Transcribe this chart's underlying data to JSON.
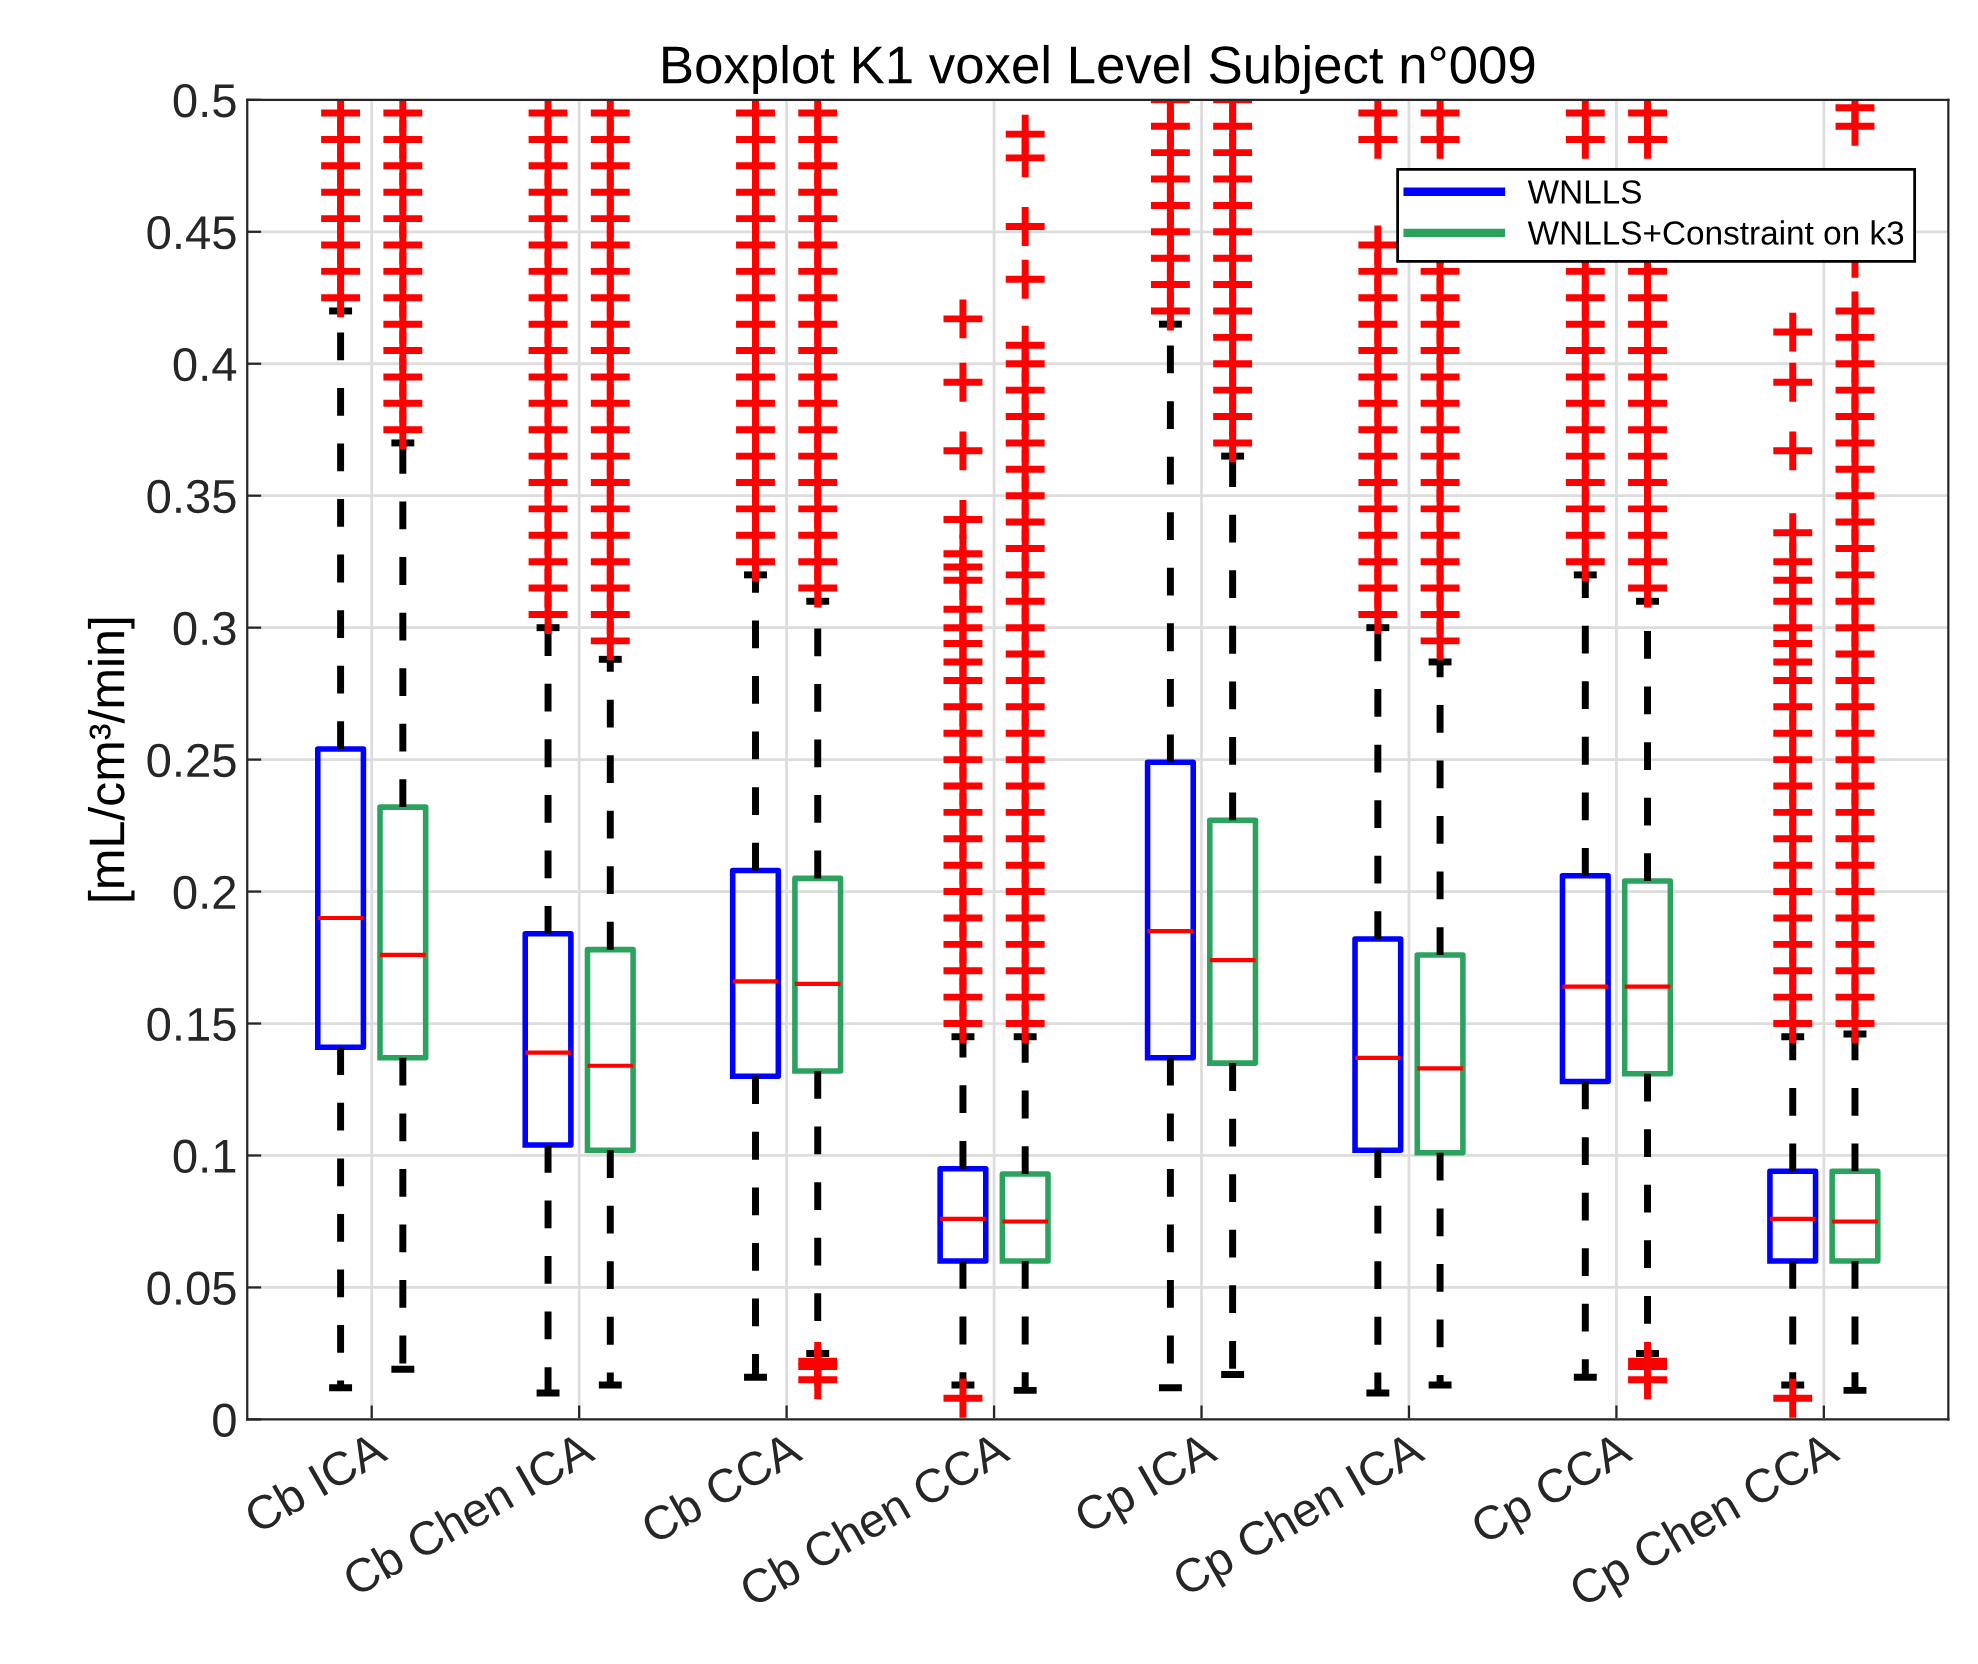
{
  "chart_data": {
    "type": "box",
    "title": "Boxplot K1 voxel Level Subject n°009",
    "ylabel": "[mL/cm³/min]",
    "categories": [
      "Cb ICA",
      "Cb Chen ICA",
      "Cb CCA",
      "Cb Chen CCA",
      "Cp ICA",
      "Cp Chen ICA",
      "Cp CCA",
      "Cp Chen CCA"
    ],
    "ylim": [
      0,
      0.5
    ],
    "yticks": [
      0,
      0.05,
      0.1,
      0.15,
      0.2,
      0.25,
      0.3,
      0.35,
      0.4,
      0.45,
      0.5
    ],
    "grid": true,
    "legend": "top right",
    "marker": "cross",
    "series": [
      {
        "name": "WNLLS",
        "color": "#0000ff",
        "boxes": [
          {
            "low": 0.012,
            "q1": 0.141,
            "median": 0.19,
            "q3": 0.254,
            "high": 0.42,
            "outliers": [
              0.425,
              0.435,
              0.445,
              0.455,
              0.465,
              0.475,
              0.485,
              0.495
            ]
          },
          {
            "low": 0.01,
            "q1": 0.104,
            "median": 0.139,
            "q3": 0.184,
            "high": 0.3,
            "outliers": [
              0.305,
              0.315,
              0.325,
              0.335,
              0.345,
              0.355,
              0.365,
              0.375,
              0.385,
              0.395,
              0.405,
              0.415,
              0.425,
              0.435,
              0.445,
              0.455,
              0.465,
              0.475,
              0.485,
              0.495
            ]
          },
          {
            "low": 0.016,
            "q1": 0.13,
            "median": 0.166,
            "q3": 0.208,
            "high": 0.32,
            "outliers": [
              0.325,
              0.335,
              0.345,
              0.355,
              0.365,
              0.375,
              0.385,
              0.395,
              0.405,
              0.415,
              0.425,
              0.435,
              0.445,
              0.455,
              0.465,
              0.475,
              0.485,
              0.495
            ]
          },
          {
            "low": 0.013,
            "q1": 0.06,
            "median": 0.076,
            "q3": 0.095,
            "high": 0.145,
            "outliers": [
              0.008,
              0.15,
              0.16,
              0.17,
              0.18,
              0.19,
              0.2,
              0.21,
              0.22,
              0.23,
              0.24,
              0.25,
              0.26,
              0.27,
              0.28,
              0.287,
              0.294,
              0.3,
              0.307,
              0.318,
              0.323,
              0.328,
              0.341,
              0.367,
              0.393,
              0.417
            ]
          },
          {
            "low": 0.012,
            "q1": 0.137,
            "median": 0.185,
            "q3": 0.249,
            "high": 0.415,
            "outliers": [
              0.42,
              0.43,
              0.44,
              0.45,
              0.46,
              0.47,
              0.48,
              0.49,
              0.5
            ]
          },
          {
            "low": 0.01,
            "q1": 0.102,
            "median": 0.137,
            "q3": 0.182,
            "high": 0.3,
            "outliers": [
              0.305,
              0.315,
              0.325,
              0.335,
              0.345,
              0.355,
              0.365,
              0.375,
              0.385,
              0.395,
              0.405,
              0.415,
              0.425,
              0.435,
              0.445,
              0.485,
              0.495
            ]
          },
          {
            "low": 0.016,
            "q1": 0.128,
            "median": 0.164,
            "q3": 0.206,
            "high": 0.32,
            "outliers": [
              0.325,
              0.335,
              0.345,
              0.355,
              0.365,
              0.375,
              0.385,
              0.395,
              0.405,
              0.415,
              0.425,
              0.435,
              0.445,
              0.485,
              0.495
            ]
          },
          {
            "low": 0.013,
            "q1": 0.06,
            "median": 0.076,
            "q3": 0.094,
            "high": 0.145,
            "outliers": [
              0.008,
              0.15,
              0.16,
              0.17,
              0.18,
              0.19,
              0.2,
              0.21,
              0.22,
              0.23,
              0.24,
              0.25,
              0.26,
              0.27,
              0.28,
              0.287,
              0.294,
              0.3,
              0.31,
              0.318,
              0.325,
              0.336,
              0.367,
              0.393,
              0.412
            ]
          }
        ]
      },
      {
        "name": "WNLLS+Constraint on k3",
        "color": "#2ca25f",
        "boxes": [
          {
            "low": 0.019,
            "q1": 0.137,
            "median": 0.176,
            "q3": 0.232,
            "high": 0.37,
            "outliers": [
              0.375,
              0.385,
              0.395,
              0.405,
              0.415,
              0.425,
              0.435,
              0.445,
              0.455,
              0.465,
              0.475,
              0.485,
              0.495
            ]
          },
          {
            "low": 0.013,
            "q1": 0.102,
            "median": 0.134,
            "q3": 0.178,
            "high": 0.288,
            "outliers": [
              0.295,
              0.305,
              0.315,
              0.325,
              0.335,
              0.345,
              0.355,
              0.365,
              0.375,
              0.385,
              0.395,
              0.405,
              0.415,
              0.425,
              0.435,
              0.445,
              0.455,
              0.465,
              0.475,
              0.485,
              0.495
            ]
          },
          {
            "low": 0.025,
            "q1": 0.132,
            "median": 0.165,
            "q3": 0.205,
            "high": 0.31,
            "outliers": [
              0.015,
              0.02,
              0.022,
              0.315,
              0.325,
              0.335,
              0.345,
              0.355,
              0.365,
              0.375,
              0.385,
              0.395,
              0.405,
              0.415,
              0.425,
              0.435,
              0.445,
              0.455,
              0.465,
              0.475,
              0.485,
              0.495
            ]
          },
          {
            "low": 0.011,
            "q1": 0.06,
            "median": 0.075,
            "q3": 0.093,
            "high": 0.145,
            "outliers": [
              0.15,
              0.16,
              0.17,
              0.18,
              0.19,
              0.2,
              0.21,
              0.22,
              0.23,
              0.24,
              0.25,
              0.26,
              0.27,
              0.28,
              0.29,
              0.3,
              0.31,
              0.32,
              0.33,
              0.34,
              0.35,
              0.36,
              0.37,
              0.38,
              0.39,
              0.4,
              0.407,
              0.432,
              0.452,
              0.478,
              0.487
            ]
          },
          {
            "low": 0.017,
            "q1": 0.135,
            "median": 0.174,
            "q3": 0.227,
            "high": 0.365,
            "outliers": [
              0.37,
              0.38,
              0.39,
              0.4,
              0.41,
              0.42,
              0.43,
              0.44,
              0.45,
              0.46,
              0.47,
              0.48,
              0.49,
              0.5
            ]
          },
          {
            "low": 0.013,
            "q1": 0.101,
            "median": 0.133,
            "q3": 0.176,
            "high": 0.287,
            "outliers": [
              0.295,
              0.305,
              0.315,
              0.325,
              0.335,
              0.345,
              0.355,
              0.365,
              0.375,
              0.385,
              0.395,
              0.405,
              0.415,
              0.425,
              0.435,
              0.445,
              0.485,
              0.495
            ]
          },
          {
            "low": 0.025,
            "q1": 0.131,
            "median": 0.164,
            "q3": 0.204,
            "high": 0.31,
            "outliers": [
              0.015,
              0.02,
              0.022,
              0.315,
              0.325,
              0.335,
              0.345,
              0.355,
              0.365,
              0.375,
              0.385,
              0.395,
              0.405,
              0.415,
              0.425,
              0.435,
              0.445,
              0.485,
              0.495
            ]
          },
          {
            "low": 0.011,
            "q1": 0.06,
            "median": 0.075,
            "q3": 0.094,
            "high": 0.146,
            "outliers": [
              0.15,
              0.16,
              0.17,
              0.18,
              0.19,
              0.2,
              0.21,
              0.22,
              0.23,
              0.24,
              0.25,
              0.26,
              0.27,
              0.28,
              0.29,
              0.3,
              0.31,
              0.32,
              0.33,
              0.34,
              0.35,
              0.36,
              0.37,
              0.38,
              0.39,
              0.4,
              0.41,
              0.42,
              0.44,
              0.49,
              0.497
            ]
          }
        ]
      }
    ]
  }
}
